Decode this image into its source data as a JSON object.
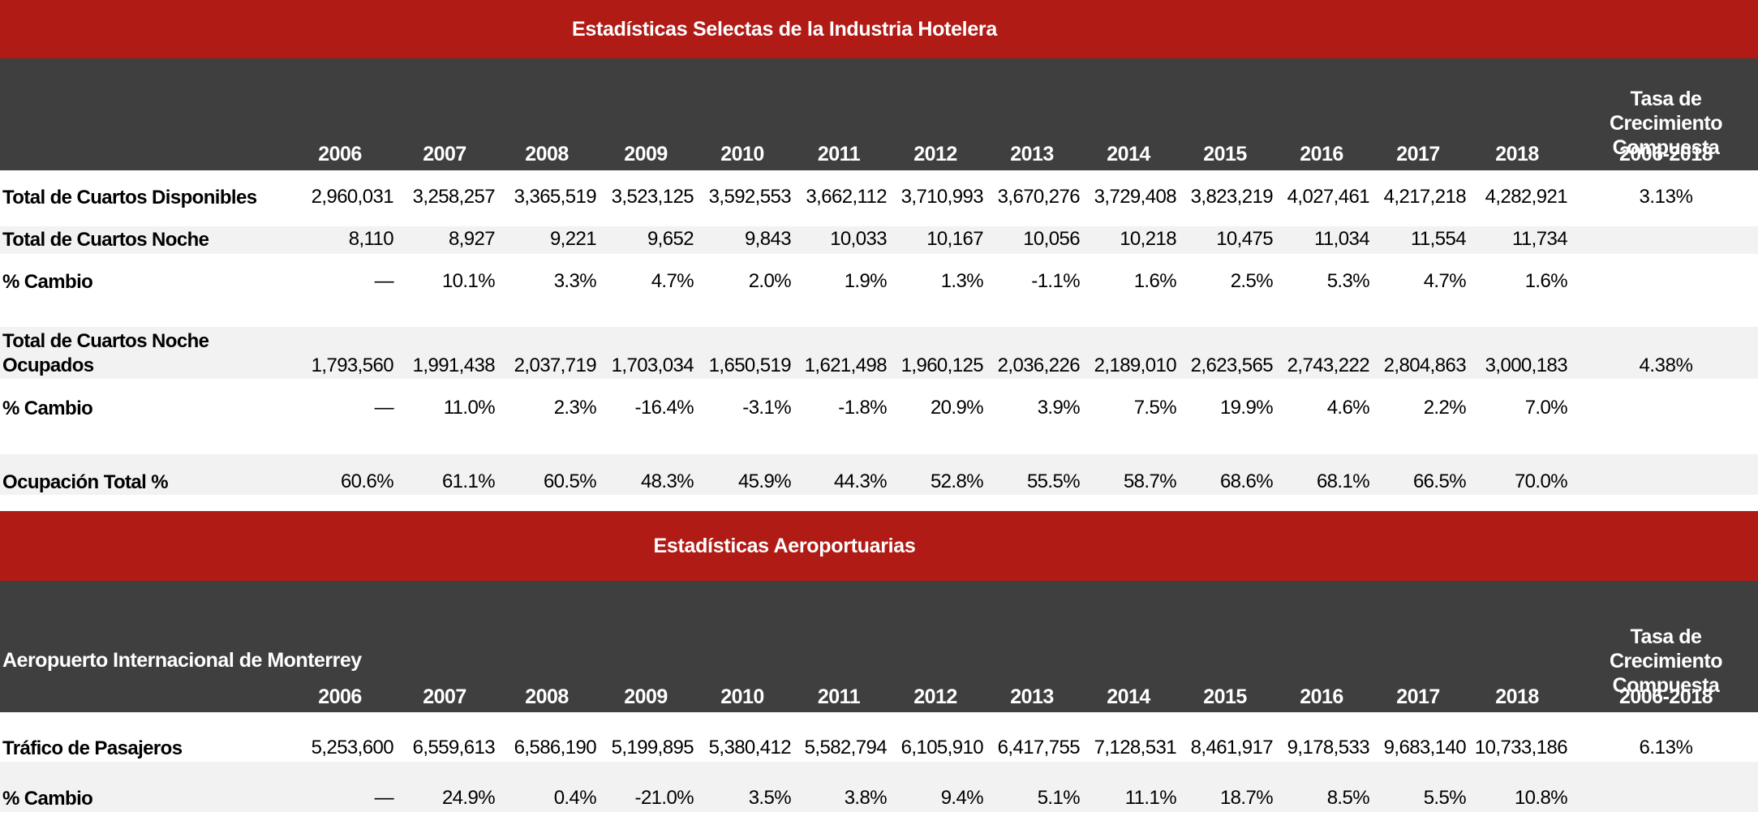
{
  "colors": {
    "accent_red": "#b11b16",
    "header_dark": "#3f3f3f",
    "stripe_grey": "#f2f2f2"
  },
  "hotel": {
    "title": "Estadísticas Selectas de la Industria Hotelera",
    "header_label": "",
    "years": [
      "2006",
      "2007",
      "2008",
      "2009",
      "2010",
      "2011",
      "2012",
      "2013",
      "2014",
      "2015",
      "2016",
      "2017",
      "2018"
    ],
    "rate_header": {
      "line1": "Tasa de Crecimiento",
      "line2": "Compuesta",
      "period": "2006-2018"
    },
    "rows": [
      {
        "label": "Total de Cuartos Disponibles",
        "values": [
          "2,960,031",
          "3,258,257",
          "3,365,519",
          "3,523,125",
          "3,592,553",
          "3,662,112",
          "3,710,993",
          "3,670,276",
          "3,729,408",
          "3,823,219",
          "4,027,461",
          "4,217,218",
          "4,282,921"
        ],
        "cagr": "3.13%"
      },
      {
        "label": "Total de Cuartos Noche",
        "values": [
          "8,110",
          "8,927",
          "9,221",
          "9,652",
          "9,843",
          "10,033",
          "10,167",
          "10,056",
          "10,218",
          "10,475",
          "11,034",
          "11,554",
          "11,734"
        ],
        "cagr": ""
      },
      {
        "label": "% Cambio",
        "values": [
          "—",
          "10.1%",
          "3.3%",
          "4.7%",
          "2.0%",
          "1.9%",
          "1.3%",
          "-1.1%",
          "1.6%",
          "2.5%",
          "5.3%",
          "4.7%",
          "1.6%"
        ],
        "cagr": ""
      },
      {
        "label": "Total de Cuartos Noche",
        "label2": "Ocupados",
        "values": [
          "1,793,560",
          "1,991,438",
          "2,037,719",
          "1,703,034",
          "1,650,519",
          "1,621,498",
          "1,960,125",
          "2,036,226",
          "2,189,010",
          "2,623,565",
          "2,743,222",
          "2,804,863",
          "3,000,183"
        ],
        "cagr": "4.38%"
      },
      {
        "label": "% Cambio",
        "values": [
          "—",
          "11.0%",
          "2.3%",
          "-16.4%",
          "-3.1%",
          "-1.8%",
          "20.9%",
          "3.9%",
          "7.5%",
          "19.9%",
          "4.6%",
          "2.2%",
          "7.0%"
        ],
        "cagr": ""
      },
      {
        "label": "Ocupación Total %",
        "values": [
          "60.6%",
          "61.1%",
          "60.5%",
          "48.3%",
          "45.9%",
          "44.3%",
          "52.8%",
          "55.5%",
          "58.7%",
          "68.6%",
          "68.1%",
          "66.5%",
          "70.0%"
        ],
        "cagr": ""
      }
    ]
  },
  "airport": {
    "title": "Estadísticas Aeroportuarias",
    "header_label": "Aeropuerto Internacional de Monterrey",
    "years": [
      "2006",
      "2007",
      "2008",
      "2009",
      "2010",
      "2011",
      "2012",
      "2013",
      "2014",
      "2015",
      "2016",
      "2017",
      "2018"
    ],
    "rate_header": {
      "line1": "Tasa de Crecimiento",
      "line2": "Compuesta",
      "period": "2006-2018"
    },
    "rows": [
      {
        "label": "Tráfico de Pasajeros",
        "values": [
          "5,253,600",
          "6,559,613",
          "6,586,190",
          "5,199,895",
          "5,380,412",
          "5,582,794",
          "6,105,910",
          "6,417,755",
          "7,128,531",
          "8,461,917",
          "9,178,533",
          "9,683,140",
          "10,733,186"
        ],
        "cagr": "6.13%"
      },
      {
        "label": "% Cambio",
        "values": [
          "—",
          "24.9%",
          "0.4%",
          "-21.0%",
          "3.5%",
          "3.8%",
          "9.4%",
          "5.1%",
          "11.1%",
          "18.7%",
          "8.5%",
          "5.5%",
          "10.8%"
        ],
        "cagr": ""
      }
    ]
  }
}
